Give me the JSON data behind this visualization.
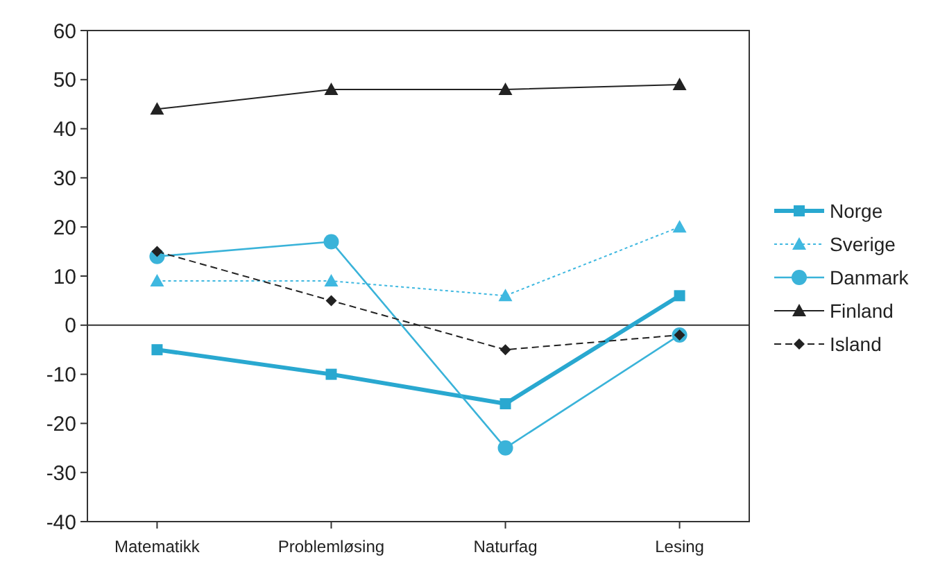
{
  "chart_data": {
    "type": "line",
    "categories": [
      "Matematikk",
      "Problemløsing",
      "Naturfag",
      "Lesing"
    ],
    "ylim": [
      -40,
      60
    ],
    "yticks": [
      -40,
      -30,
      -20,
      -10,
      0,
      10,
      20,
      30,
      40,
      50,
      60
    ],
    "legend": "right",
    "ref_lines": [
      {
        "axis": "y",
        "value": 0,
        "color": "#333333"
      }
    ],
    "series": [
      {
        "name": "Norge",
        "color": "#29a8d0",
        "values": [
          -5,
          -10,
          -16,
          6
        ],
        "marker": "square",
        "line_style": "solid"
      },
      {
        "name": "Sverige",
        "color": "#3fb8e0",
        "values": [
          9,
          9,
          6,
          20
        ],
        "marker": "triangle",
        "line_style": "dotted"
      },
      {
        "name": "Danmark",
        "color": "#3ab3d9",
        "values": [
          14,
          17,
          -25,
          -2
        ],
        "marker": "circle",
        "line_style": "solid"
      },
      {
        "name": "Finland",
        "color": "#222222",
        "values": [
          44,
          48,
          48,
          49
        ],
        "marker": "triangle",
        "line_style": "solid"
      },
      {
        "name": "Island",
        "color": "#222222",
        "values": [
          15,
          5,
          -5,
          -2
        ],
        "marker": "diamond",
        "line_style": "dashed"
      }
    ]
  }
}
